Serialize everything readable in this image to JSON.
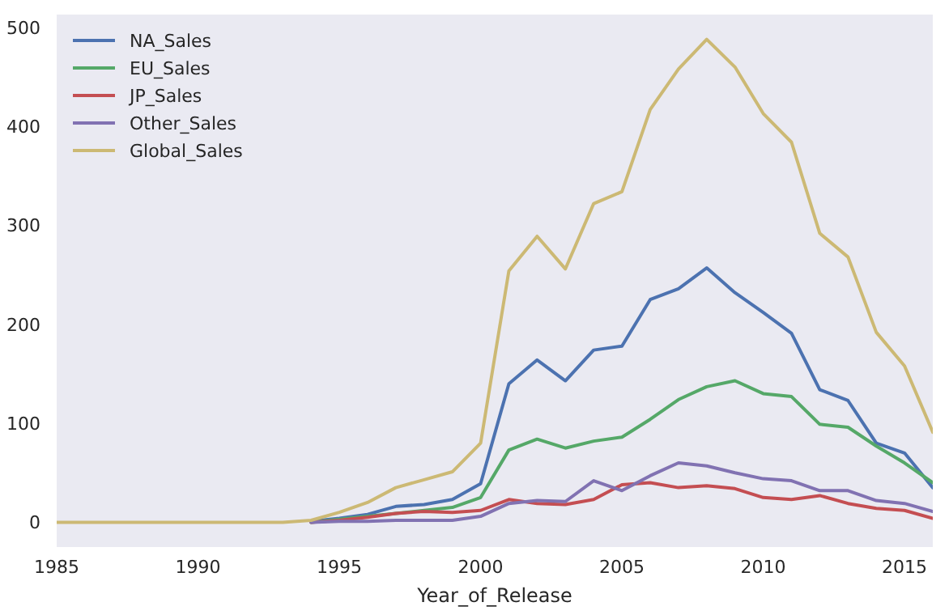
{
  "chart_data": {
    "type": "line",
    "xlabel": "Year_of_Release",
    "x": [
      1985,
      1986,
      1987,
      1988,
      1989,
      1990,
      1991,
      1992,
      1993,
      1994,
      1995,
      1996,
      1997,
      1998,
      1999,
      2000,
      2001,
      2002,
      2003,
      2004,
      2005,
      2006,
      2007,
      2008,
      2009,
      2010,
      2011,
      2012,
      2013,
      2014,
      2015,
      2016
    ],
    "xlim": [
      1985,
      2016
    ],
    "xticks": [
      1985,
      1990,
      1995,
      2000,
      2005,
      2010,
      2015
    ],
    "ylim": [
      -25,
      513
    ],
    "yticks": [
      0,
      100,
      200,
      300,
      400,
      500
    ],
    "grid": false,
    "legend": "top left",
    "line_style": "solid",
    "marker": "none",
    "series": [
      {
        "name": "NA_Sales",
        "color": "#4c72b0",
        "values": [
          null,
          null,
          null,
          null,
          null,
          null,
          null,
          null,
          null,
          1,
          4,
          8,
          16,
          18,
          23,
          39,
          140,
          164,
          143,
          174,
          178,
          225,
          236,
          257,
          232,
          212,
          191,
          134,
          123,
          80,
          70,
          35
        ]
      },
      {
        "name": "EU_Sales",
        "color": "#55a868",
        "values": [
          null,
          null,
          null,
          null,
          null,
          null,
          null,
          null,
          null,
          0,
          3,
          6,
          9,
          12,
          15,
          25,
          73,
          84,
          75,
          82,
          86,
          104,
          124,
          137,
          143,
          130,
          127,
          99,
          96,
          77,
          60,
          40
        ]
      },
      {
        "name": "JP_Sales",
        "color": "#c44e52",
        "values": [
          null,
          null,
          null,
          null,
          null,
          null,
          null,
          null,
          null,
          0,
          2,
          5,
          9,
          11,
          10,
          12,
          23,
          19,
          18,
          23,
          38,
          40,
          35,
          37,
          34,
          25,
          23,
          27,
          19,
          14,
          12,
          4
        ]
      },
      {
        "name": "Other_Sales",
        "color": "#8172b2",
        "values": [
          null,
          null,
          null,
          null,
          null,
          null,
          null,
          null,
          null,
          0,
          1,
          1,
          2,
          2,
          2,
          6,
          19,
          22,
          21,
          42,
          32,
          47,
          60,
          57,
          50,
          44,
          42,
          32,
          32,
          22,
          19,
          11
        ]
      },
      {
        "name": "Global_Sales",
        "color": "#ccb974",
        "values": [
          0,
          0,
          0,
          0,
          0,
          0,
          0,
          0,
          0,
          2,
          10,
          20,
          35,
          43,
          51,
          80,
          254,
          289,
          256,
          322,
          334,
          417,
          458,
          488,
          460,
          413,
          384,
          292,
          268,
          192,
          158,
          91
        ]
      }
    ]
  }
}
